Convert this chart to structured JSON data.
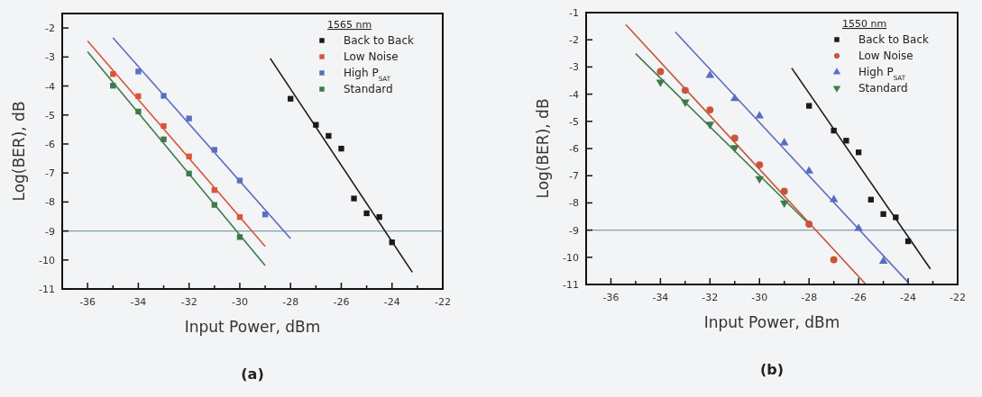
{
  "chart_data": [
    {
      "type": "scatter",
      "xlabel": "Input Power, dBm",
      "ylabel": "Log(BER), dB",
      "legend_title": "1565 nm",
      "annotations": [
        "(a)"
      ],
      "xlim": [
        -37,
        -22
      ],
      "xticks": [
        {
          "value": -37,
          "label": null
        },
        -36,
        {
          "value": -35,
          "label": null
        },
        -34,
        {
          "value": -33,
          "label": null
        },
        -32,
        {
          "value": -31,
          "label": null
        },
        -30,
        {
          "value": -29,
          "label": null
        },
        -28,
        {
          "value": -27,
          "label": null
        },
        -26,
        {
          "value": -25,
          "label": null
        },
        -24,
        {
          "value": -23,
          "label": null
        },
        -22
      ],
      "ylim": [
        -11,
        -1.5
      ],
      "yticks": [
        -11,
        -10,
        -9,
        -8,
        -7,
        -6,
        -5,
        -4,
        -3,
        -2
      ],
      "grid": false,
      "legend": "top right",
      "ref_lines": [
        {
          "axis": "y",
          "value": -9,
          "color": "#7f9fb0"
        }
      ],
      "series": [
        {
          "name": "Back to Back",
          "type": "scatter",
          "marker": "square",
          "color": "#1a1a1a",
          "x": [
            -28,
            -27,
            -26.5,
            -26,
            -25.5,
            -25,
            -24.5,
            -24
          ],
          "values": [
            -4.44,
            -5.34,
            -5.72,
            -6.16,
            -7.88,
            -8.39,
            -8.52,
            -9.39
          ]
        },
        {
          "name": "Low Noise",
          "type": "scatter",
          "marker": "square",
          "color": "#d9553a",
          "x": [
            -35,
            -34,
            -33,
            -32,
            -31,
            -30
          ],
          "values": [
            -3.59,
            -4.35,
            -5.38,
            -6.43,
            -7.59,
            -8.52
          ]
        },
        {
          "name": "High P$_{SAT}$",
          "type": "scatter",
          "marker": "square",
          "color": "#5a6ec0",
          "x": [
            -34,
            -33,
            -32,
            -31,
            -30,
            -29
          ],
          "values": [
            -3.5,
            -4.34,
            -5.12,
            -6.2,
            -7.26,
            -8.43
          ]
        },
        {
          "name": "Standard",
          "type": "scatter",
          "marker": "square",
          "color": "#3f7a4a",
          "x": [
            -35,
            -34,
            -33,
            -32,
            -31,
            -30
          ],
          "values": [
            -3.99,
            -4.88,
            -5.84,
            -7.02,
            -8.1,
            -9.21
          ]
        },
        {
          "type": "line",
          "color": "#1a1a1a",
          "x": [
            -28.8,
            -23.2
          ],
          "values": [
            -3.05,
            -10.42
          ]
        },
        {
          "type": "line",
          "color": "#d9553a",
          "x": [
            -36,
            -29
          ],
          "values": [
            -2.45,
            -9.53
          ]
        },
        {
          "type": "line",
          "color": "#5a6ec0",
          "x": [
            -35,
            -28
          ],
          "values": [
            -2.34,
            -9.26
          ]
        },
        {
          "type": "line",
          "color": "#3f7a4a",
          "x": [
            -36,
            -29
          ],
          "values": [
            -2.82,
            -10.19
          ]
        }
      ]
    },
    {
      "type": "scatter",
      "xlabel": "Input Power, dBm",
      "ylabel": "Log(BER), dB",
      "legend_title": "1550 nm",
      "annotations": [
        "(b)"
      ],
      "xlim": [
        -37,
        -22
      ],
      "xticks": [
        {
          "value": -37,
          "label": null
        },
        -36,
        {
          "value": -35,
          "label": null
        },
        -34,
        {
          "value": -33,
          "label": null
        },
        -32,
        {
          "value": -31,
          "label": null
        },
        -30,
        {
          "value": -29,
          "label": null
        },
        -28,
        {
          "value": -27,
          "label": null
        },
        -26,
        {
          "value": -25,
          "label": null
        },
        -24,
        {
          "value": -23,
          "label": null
        },
        -22
      ],
      "ylim": [
        -11,
        -1
      ],
      "yticks": [
        -11,
        -10,
        -9,
        -8,
        -7,
        -6,
        -5,
        -4,
        -3,
        -2,
        -1
      ],
      "grid": false,
      "legend": "top right",
      "ref_lines": [
        {
          "axis": "y",
          "value": -9,
          "color": "#7f9fb0"
        }
      ],
      "series": [
        {
          "name": "Back to Back",
          "type": "scatter",
          "marker": "square",
          "color": "#1a1a1a",
          "x": [
            -28,
            -27,
            -26.5,
            -26,
            -25.5,
            -25,
            -24.5,
            -24
          ],
          "values": [
            -4.43,
            -5.34,
            -5.71,
            -6.14,
            -7.88,
            -8.41,
            -8.53,
            -9.41
          ]
        },
        {
          "name": "Low Noise",
          "type": "scatter",
          "marker": "circle",
          "color": "#c8553a",
          "x": [
            -34,
            -33,
            -32,
            -31,
            -30,
            -29,
            -28,
            -27
          ],
          "values": [
            -3.17,
            -3.86,
            -4.58,
            -5.62,
            -6.6,
            -7.57,
            -8.78,
            -10.09
          ]
        },
        {
          "name": "High P$_{SAT}$",
          "type": "scatter",
          "marker": "triangle",
          "color": "#5a6ec0",
          "x": [
            -32,
            -31,
            -30,
            -29,
            -28,
            -27,
            -26,
            -25
          ],
          "values": [
            -3.31,
            -4.16,
            -4.8,
            -5.79,
            -6.83,
            -7.88,
            -8.94,
            -10.15
          ]
        },
        {
          "name": "Standard",
          "type": "scatter",
          "marker": "triangle-down",
          "color": "#3f7a4a",
          "x": [
            -34,
            -33,
            -32,
            -31,
            -30,
            -29
          ],
          "values": [
            -3.56,
            -4.29,
            -5.11,
            -5.97,
            -7.11,
            -8.0
          ]
        },
        {
          "type": "line",
          "color": "#1a1a1a",
          "x": [
            -28.7,
            -23.1
          ],
          "values": [
            -3.04,
            -10.43
          ]
        },
        {
          "type": "line",
          "color": "#c8553a",
          "x": [
            -35.4,
            -25.7
          ],
          "values": [
            -1.44,
            -11
          ]
        },
        {
          "type": "line",
          "color": "#5a6ec0",
          "x": [
            -33.4,
            -24
          ],
          "values": [
            -1.71,
            -10.92
          ]
        },
        {
          "type": "line",
          "color": "#3f7a4a",
          "x": [
            -35,
            -28
          ],
          "values": [
            -2.51,
            -8.78
          ]
        }
      ]
    }
  ]
}
